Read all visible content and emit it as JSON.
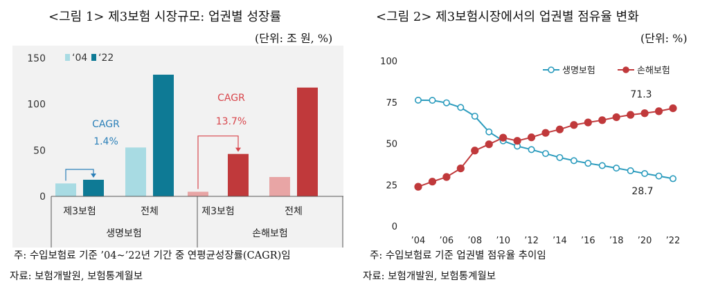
{
  "figure1": {
    "title": "<그림 1> 제3보험 시장규모: 업권별 성장률",
    "unit": "(단위: 조 원, %)",
    "legend": [
      "‘04",
      "‘22"
    ],
    "cagr_label": "CAGR",
    "note": "주: 수입보험료 기준 ’04~’22년 기간 중 연평균성장률(CAGR)임",
    "source": "자료: 보험개발원, 보험통계월보"
  },
  "figure2": {
    "title": "<그림 2> 제3보험시장에서의 업권별 점유율 변화",
    "unit": "(단위: %)",
    "end_label_top": "71.3",
    "end_label_bottom": "28.7",
    "note": "주: 수입보험료 기준 업권별 점유율 추이임",
    "source": "자료: 보험개발원, 보험통계월보"
  },
  "chart_data": [
    {
      "type": "bar",
      "groups": [
        "생명보험",
        "손해보험"
      ],
      "categories": [
        "제3보험",
        "전체",
        "제3보험",
        "전체"
      ],
      "series": [
        {
          "name": "‘04",
          "values": [
            14,
            53,
            5,
            21
          ]
        },
        {
          "name": "‘22",
          "values": [
            18,
            132,
            46,
            118
          ]
        }
      ],
      "annotations": [
        {
          "group": "생명보험",
          "label": "CAGR",
          "value": "1.4%"
        },
        {
          "group": "손해보험",
          "label": "CAGR",
          "value": "13.7%"
        }
      ],
      "ylim": [
        0,
        150
      ],
      "yticks": [
        0,
        50,
        100,
        150
      ],
      "colors": {
        "life_04": "#a8dbe3",
        "life_22": "#0e7a95",
        "nonlife_04": "#e8a5a5",
        "nonlife_22": "#c0393b"
      }
    },
    {
      "type": "line",
      "x": [
        "’04",
        "’05",
        "’06",
        "’07",
        "’08",
        "’09",
        "’10",
        "’11",
        "’12",
        "’13",
        "’14",
        "’15",
        "’16",
        "’17",
        "’18",
        "’19",
        "’20",
        "’21",
        "’22"
      ],
      "xticks": [
        "’04",
        "’06",
        "’08",
        "’10",
        "’12",
        "’14",
        "’16",
        "’18",
        "’20",
        "’22"
      ],
      "series": [
        {
          "name": "생명보험",
          "color": "#2a9bbd",
          "values": [
            76.2,
            76.1,
            74.6,
            71.8,
            66.5,
            57.0,
            51.6,
            48.4,
            46.3,
            43.9,
            41.5,
            39.6,
            38.0,
            36.6,
            35.1,
            33.5,
            31.8,
            30.3,
            28.7
          ]
        },
        {
          "name": "손해보험",
          "color": "#c0393b",
          "values": [
            23.8,
            26.9,
            29.7,
            34.9,
            45.7,
            49.5,
            53.5,
            51.6,
            53.7,
            56.4,
            58.5,
            61.2,
            62.7,
            64.1,
            65.9,
            67.3,
            68.3,
            69.5,
            71.3
          ]
        }
      ],
      "ylim": [
        0,
        100
      ],
      "yticks": [
        0,
        25,
        50,
        75,
        100
      ],
      "legend_position": "top-right"
    }
  ]
}
